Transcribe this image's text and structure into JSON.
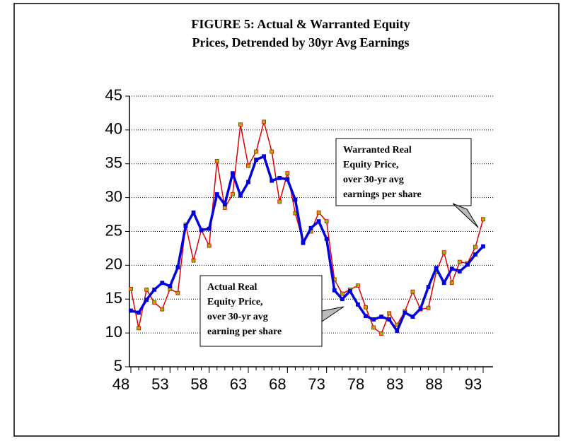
{
  "chart_data": {
    "type": "line",
    "title": [
      "FIGURE 5: Actual & Warranted Equity",
      "Prices, Detrended by 30yr Avg Earnings"
    ],
    "x": [
      48,
      49,
      50,
      51,
      52,
      53,
      54,
      55,
      56,
      57,
      58,
      59,
      60,
      61,
      62,
      63,
      64,
      65,
      66,
      67,
      68,
      69,
      70,
      71,
      72,
      73,
      74,
      75,
      76,
      77,
      78,
      79,
      80,
      81,
      82,
      83,
      84,
      85,
      86,
      87,
      88,
      89,
      90,
      91,
      92,
      93
    ],
    "xlim": [
      48,
      93
    ],
    "xticks": [
      48,
      53,
      58,
      63,
      68,
      73,
      78,
      83,
      88,
      93
    ],
    "ylim": [
      5,
      45
    ],
    "yticks": [
      5,
      10,
      15,
      20,
      25,
      30,
      35,
      40,
      45
    ],
    "grid": true,
    "series": [
      {
        "color": "#e00000",
        "marker_color": "#99bb00",
        "values": [
          16.5,
          10.7,
          16.4,
          14.5,
          13.5,
          16.5,
          15.9,
          26,
          20.7,
          25.2,
          22.9,
          35.4,
          28.5,
          30.5,
          40.8,
          34.7,
          36.8,
          41.2,
          36.8,
          29.4,
          33.6,
          27.7,
          23.5,
          25,
          27.8,
          26.5,
          17.9,
          15.8,
          16.4,
          17,
          13.8,
          10.8,
          9.9,
          12.9,
          11.2,
          13.2,
          16.1,
          13.5,
          13.7,
          19,
          21.9,
          17.4,
          20.5,
          20.3,
          22.7,
          26.8
        ]
      },
      {
        "color": "#0000e0",
        "marker_color": "#0000e0",
        "values": [
          13.3,
          13,
          14.9,
          16.4,
          17.4,
          16.9,
          19.7,
          25.8,
          27.8,
          25.2,
          25.4,
          30.5,
          29,
          33.6,
          30.3,
          32.3,
          35.6,
          36.1,
          32.5,
          32.9,
          32.7,
          29.7,
          23.3,
          25.5,
          26.5,
          23.9,
          16.3,
          15,
          16.2,
          14.2,
          12.5,
          12,
          12.4,
          12,
          10.3,
          13,
          12.4,
          13.6,
          16.8,
          19.6,
          17.4,
          19.5,
          19.1,
          20.1,
          21.6,
          22.8
        ]
      }
    ],
    "annotations": [
      {
        "lines": [
          "Warranted Real",
          "Equity Price,",
          "over 30-yr avg",
          "earnings per share"
        ]
      },
      {
        "lines": [
          "Actual Real",
          "Equity Price,",
          "over 30-yr avg",
          "earning per share"
        ]
      }
    ]
  }
}
